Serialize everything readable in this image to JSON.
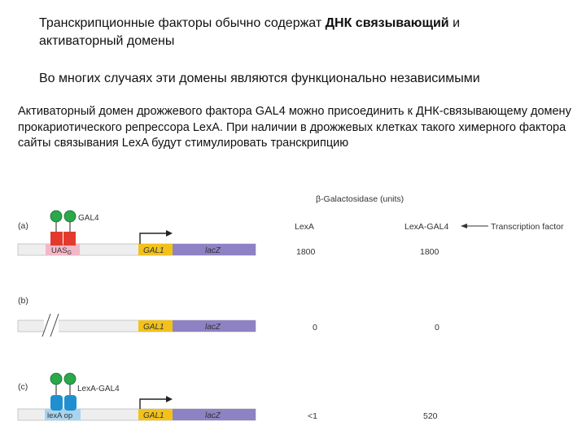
{
  "text": {
    "line1_prefix": "Транскрипционные факторы обычно содержат ",
    "line1_bold": "ДНК связывающий",
    "line1_suffix": " и",
    "line2": "активаторный домены",
    "para2": "Во многих случаях эти домены являются функционально независимыми",
    "para3": "Активаторный домен дрожжевого фактора GAL4 можно присоединить к ДНК-связывающему домену прокариотического репрессора LexA. При наличии в дрожжевых клетках такого химерного фактора сайты связывания LexA будут стимулировать транскрипцию"
  },
  "figure": {
    "header": "β-Galactosidase (units)",
    "col_lexa": "LexA",
    "col_lexa_gal4": "LexA-GAL4",
    "arrow_label": "Transcription factor",
    "rows": [
      {
        "label": "(a)",
        "factor_label": "GAL4",
        "site_label": "UAS",
        "site_sub": "G",
        "gene1": "GAL1",
        "gene2": "lacZ",
        "value_lexa": "1800",
        "value_lexa_gal4": "1800"
      },
      {
        "label": "(b)",
        "gene1": "GAL1",
        "gene2": "lacZ",
        "value_lexa": "0",
        "value_lexa_gal4": "0"
      },
      {
        "label": "(c)",
        "factor_label": "LexA-GAL4",
        "site_label": "lexA op",
        "gene1": "GAL1",
        "gene2": "lacZ",
        "value_lexa": "<1",
        "value_lexa_gal4": "520"
      }
    ],
    "colors": {
      "gal4_protein": "#e23b2e",
      "lexa_protein": "#1f8fd0",
      "activation_domain": "#2aa84a",
      "uas_site": "#f3b8c8",
      "lexop_site": "#a8d4ef",
      "gal1_box": "#f2c21b",
      "lacz_box": "#8f82c4"
    }
  }
}
